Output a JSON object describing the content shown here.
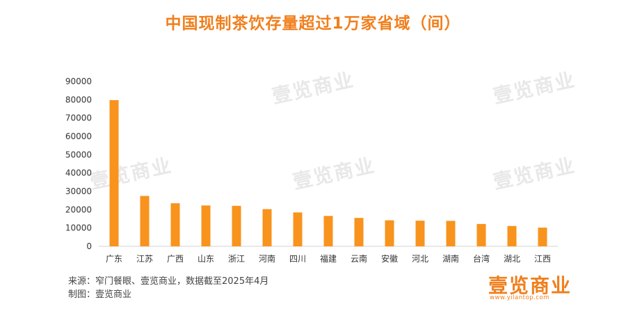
{
  "watermark": "壹览商业",
  "source": {
    "line1": "来源：窄门餐眼、壹览商业，数据截至2025年4月",
    "line2": "制图：壹览商业"
  },
  "logo": {
    "text": "壹览商业",
    "url": "www.yilantop.com"
  },
  "colors": {
    "bar": "#f8931d",
    "title": "#f07f1d"
  },
  "chart_data": {
    "type": "bar",
    "title": "中国现制茶饮存量超过1万家省域（间）",
    "categories": [
      "广东",
      "江苏",
      "广西",
      "山东",
      "浙江",
      "河南",
      "四川",
      "福建",
      "云南",
      "安徽",
      "河北",
      "湖南",
      "台湾",
      "湖北",
      "江西"
    ],
    "values": [
      79800,
      27500,
      23500,
      22300,
      22100,
      20300,
      18500,
      16600,
      15500,
      14200,
      14000,
      13900,
      12200,
      11100,
      10200
    ],
    "yticks": [
      0,
      10000,
      20000,
      30000,
      40000,
      50000,
      60000,
      70000,
      80000,
      90000
    ],
    "ylim": [
      0,
      90000
    ],
    "xlabel": "",
    "ylabel": "",
    "legend": "none",
    "grid": false
  }
}
